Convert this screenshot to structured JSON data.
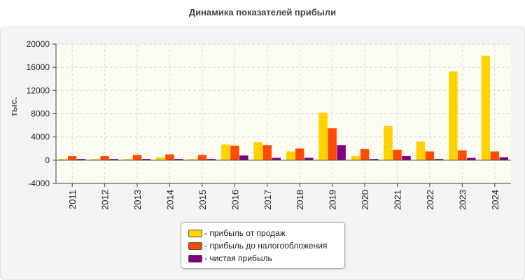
{
  "chart_data": {
    "type": "bar",
    "title": "Динамика показателей прибыли",
    "ylabel": "тыс.",
    "xlabel": "",
    "ylim": [
      -4000,
      20000
    ],
    "yticks": [
      -4000,
      0,
      4000,
      8000,
      12000,
      16000,
      20000
    ],
    "grid": true,
    "legend_position": "bottom",
    "categories": [
      "2011",
      "2012",
      "2013",
      "2014",
      "2015",
      "2016",
      "2017",
      "2018",
      "2019",
      "2020",
      "2021",
      "2022",
      "2023",
      "2024"
    ],
    "series": [
      {
        "name": "- прибыль от продаж",
        "color": "#ffd200",
        "values": [
          200,
          200,
          200,
          500,
          200,
          2700,
          3100,
          1500,
          8200,
          700,
          5900,
          3200,
          15300,
          18000
        ]
      },
      {
        "name": "- прибыль до налогообложения",
        "color": "#ff4b00",
        "values": [
          700,
          700,
          900,
          1000,
          900,
          2500,
          2600,
          2000,
          5500,
          1900,
          1800,
          1500,
          1700,
          1500
        ]
      },
      {
        "name": "- чистая прибыль",
        "color": "#800080",
        "values": [
          200,
          200,
          200,
          200,
          200,
          800,
          400,
          400,
          2600,
          200,
          700,
          200,
          400,
          500
        ]
      }
    ]
  }
}
